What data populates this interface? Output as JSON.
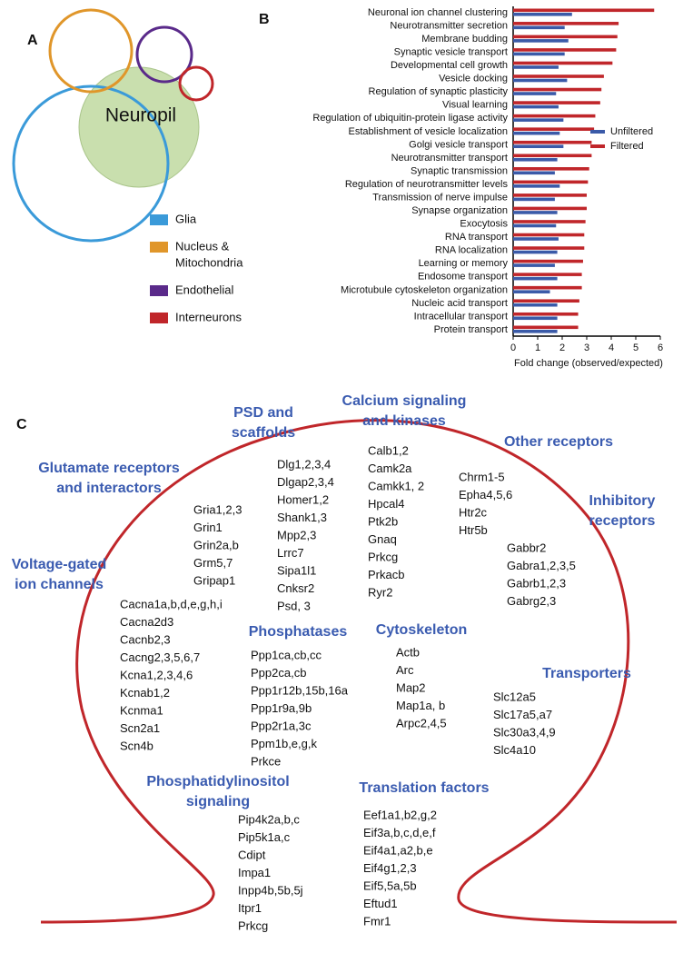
{
  "panels": {
    "a": "A",
    "b": "B",
    "c": "C"
  },
  "venn": {
    "center_label": "Neuropil",
    "center_color": "#c9dfae",
    "legend": [
      {
        "label_lines": [
          "Glia"
        ],
        "color": "#3a9ad9"
      },
      {
        "label_lines": [
          "Nucleus &",
          "Mitochondria"
        ],
        "color": "#e0962a"
      },
      {
        "label_lines": [
          "Endothelial"
        ],
        "color": "#5a2a8a"
      },
      {
        "label_lines": [
          "Interneurons"
        ],
        "color": "#c0262a"
      }
    ]
  },
  "chart_data": {
    "type": "bar",
    "orientation": "horizontal",
    "categories": [
      "Neuronal ion channel clustering",
      "Neurotransmitter secretion",
      "Membrane budding",
      "Synaptic vesicle transport",
      "Developmental cell growth",
      "Vesicle docking",
      "Regulation of synaptic plasticity",
      "Visual learning",
      "Regulation of ubiquitin-protein ligase activity",
      "Establishment of vesicle localization",
      "Golgi vesicle transport",
      "Neurotransmitter transport",
      "Synaptic transmission",
      "Regulation of neurotransmitter levels",
      "Transmission of nerve impulse",
      "Synapse organization",
      "Exocytosis",
      "RNA transport",
      "RNA localization",
      "Learning or memory",
      "Endosome transport",
      "Microtubule cytoskeleton organization",
      "Nucleic acid transport",
      "Intracellular transport",
      "Protein transport"
    ],
    "series": [
      {
        "name": "Unfiltered",
        "color": "#3a5aa8",
        "values": [
          2.4,
          2.1,
          2.25,
          2.1,
          1.85,
          2.2,
          1.75,
          1.85,
          2.05,
          1.9,
          2.05,
          1.8,
          1.7,
          1.9,
          1.7,
          1.8,
          1.75,
          1.85,
          1.8,
          1.7,
          1.8,
          1.5,
          1.8,
          1.8,
          1.8
        ]
      },
      {
        "name": "Filtered",
        "color": "#c0262a",
        "values": [
          5.75,
          4.3,
          4.25,
          4.2,
          4.05,
          3.7,
          3.6,
          3.55,
          3.35,
          3.3,
          3.2,
          3.2,
          3.1,
          3.05,
          3.0,
          3.0,
          2.95,
          2.9,
          2.9,
          2.85,
          2.8,
          2.8,
          2.7,
          2.65,
          2.65
        ]
      }
    ],
    "xlim": [
      0,
      6
    ],
    "xticks": [
      0,
      1,
      2,
      3,
      4,
      5,
      6
    ],
    "xlabel": "Fold change (observed/expected)",
    "legend": "right"
  },
  "diagram": {
    "outline_color": "#c0262a",
    "title_color": "#3a5bb0",
    "groups": [
      {
        "title": [
          "Glutamate receptors",
          "and interactors"
        ],
        "genes": [
          "Gria1,2,3",
          "Grin1",
          "Grin2a,b",
          "Grm5,7",
          "Gripap1"
        ]
      },
      {
        "title": [
          "Voltage-gated",
          "ion channels"
        ],
        "genes": [
          "Cacna1a,b,d,e,g,h,i",
          "Cacna2d3",
          "Cacnb2,3",
          "Cacng2,3,5,6,7",
          "Kcna1,2,3,4,6",
          "Kcnab1,2",
          "Kcnma1",
          "Scn2a1",
          "Scn4b"
        ]
      },
      {
        "title": [
          "PSD and",
          "scaffolds"
        ],
        "genes": [
          "Dlg1,2,3,4",
          "Dlgap2,3,4",
          "Homer1,2",
          "Shank1,3",
          "Mpp2,3",
          "Lrrc7",
          "Sipa1l1",
          "Cnksr2",
          "Psd, 3"
        ]
      },
      {
        "title": [
          "Calcium signaling",
          "and kinases"
        ],
        "genes": [
          "Calb1,2",
          "Camk2a",
          "Camkk1, 2",
          "Hpcal4",
          "Ptk2b",
          "Gnaq",
          "Prkcg",
          "Prkacb",
          "Ryr2"
        ]
      },
      {
        "title": [
          "Other receptors"
        ],
        "genes": [
          "Chrm1-5",
          "Epha4,5,6",
          "Htr2c",
          "Htr5b"
        ]
      },
      {
        "title": [
          "Inhibitory",
          "receptors"
        ],
        "genes": [
          "Gabbr2",
          "Gabra1,2,3,5",
          "Gabrb1,2,3",
          "Gabrg2,3"
        ]
      },
      {
        "title": [
          "Phosphatases"
        ],
        "genes": [
          "Ppp1ca,cb,cc",
          "Ppp2ca,cb",
          "Ppp1r12b,15b,16a",
          "Ppp1r9a,9b",
          "Ppp2r1a,3c",
          "Ppm1b,e,g,k",
          "Prkce"
        ]
      },
      {
        "title": [
          "Cytoskeleton"
        ],
        "genes": [
          "Actb",
          "Arc",
          "Map2",
          "Map1a, b",
          "Arpc2,4,5"
        ]
      },
      {
        "title": [
          "Transporters"
        ],
        "genes": [
          "Slc12a5",
          "Slc17a5,a7",
          "Slc30a3,4,9",
          "Slc4a10"
        ]
      },
      {
        "title": [
          "Phosphatidylinositol",
          "signaling"
        ],
        "genes": [
          "Pip4k2a,b,c",
          "Pip5k1a,c",
          "Cdipt",
          "Impa1",
          "Inpp4b,5b,5j",
          "Itpr1",
          "Prkcg"
        ]
      },
      {
        "title": [
          "Translation factors"
        ],
        "genes": [
          "Eef1a1,b2,g,2",
          "Eif3a,b,c,d,e,f",
          "Eif4a1,a2,b,e",
          "Eif4g1,2,3",
          "Eif5,5a,5b",
          "Eftud1",
          "Fmr1"
        ]
      }
    ]
  }
}
